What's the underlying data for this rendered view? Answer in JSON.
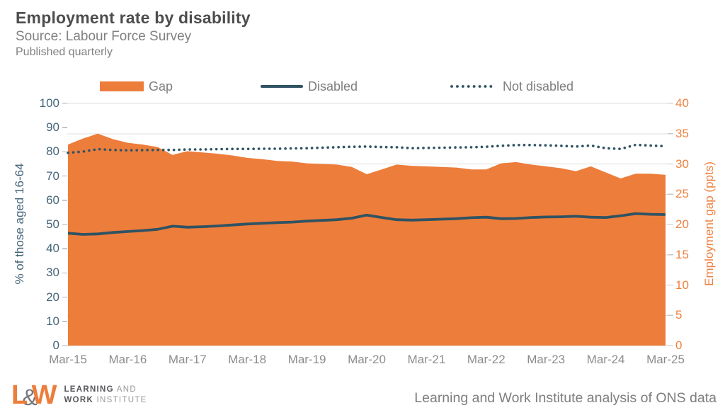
{
  "header": {
    "title": "Employment rate by disability",
    "source": "Source: Labour Force Survey",
    "frequency": "Published quarterly"
  },
  "colors": {
    "orange": "#ED7D3B",
    "slate": "#2F5363",
    "grid": "#DCDCDC",
    "left_label": "#45667A",
    "right_label": "#EE8243",
    "x_label": "#8C8C8C",
    "tick_left": "#B3B3B3",
    "tick_right": "#C9C9C9"
  },
  "legend": [
    {
      "key": "gap",
      "label": "Gap",
      "type": "area",
      "color": "#ED7D3B",
      "x": 141
    },
    {
      "key": "disabled",
      "label": "Disabled",
      "type": "line",
      "color": "#2F5363",
      "x": 368
    },
    {
      "key": "not-disabled",
      "label": "Not disabled",
      "type": "dotted",
      "color": "#2F5363",
      "x": 635
    }
  ],
  "chart_data": {
    "type": "area",
    "title": "Employment rate by disability",
    "categories": [
      "Mar-15",
      "Jun-15",
      "Sep-15",
      "Dec-15",
      "Mar-16",
      "Jun-16",
      "Sep-16",
      "Dec-16",
      "Mar-17",
      "Jun-17",
      "Sep-17",
      "Dec-17",
      "Mar-18",
      "Jun-18",
      "Sep-18",
      "Dec-18",
      "Mar-19",
      "Jun-19",
      "Sep-19",
      "Dec-19",
      "Mar-20",
      "Jun-20",
      "Sep-20",
      "Dec-20",
      "Mar-21",
      "Jun-21",
      "Sep-21",
      "Dec-21",
      "Mar-22",
      "Jun-22",
      "Sep-22",
      "Dec-22",
      "Mar-23",
      "Jun-23",
      "Sep-23",
      "Dec-23",
      "Mar-24",
      "Jun-24",
      "Sep-24",
      "Dec-24",
      "Mar-25"
    ],
    "x_tick_labels": [
      "Mar-15",
      "Mar-16",
      "Mar-17",
      "Mar-18",
      "Mar-19",
      "Mar-20",
      "Mar-21",
      "Mar-22",
      "Mar-23",
      "Mar-24",
      "Mar-25"
    ],
    "series": [
      {
        "name": "Gap",
        "type": "area",
        "axis": "right",
        "values": [
          33.2,
          34.2,
          35.0,
          34.1,
          33.5,
          33.2,
          32.8,
          31.5,
          32.1,
          31.9,
          31.7,
          31.4,
          31.0,
          30.8,
          30.5,
          30.4,
          30.1,
          30.0,
          29.9,
          29.5,
          28.3,
          29.1,
          29.9,
          29.7,
          29.6,
          29.5,
          29.4,
          29.1,
          29.1,
          30.1,
          30.3,
          29.9,
          29.6,
          29.3,
          28.8,
          29.6,
          28.6,
          27.6,
          28.4,
          28.4,
          28.2
        ]
      },
      {
        "name": "Disabled",
        "type": "line",
        "axis": "left",
        "values": [
          46.4,
          45.9,
          46.1,
          46.7,
          47.1,
          47.5,
          48.0,
          49.3,
          48.9,
          49.1,
          49.4,
          49.8,
          50.2,
          50.5,
          50.8,
          51.0,
          51.4,
          51.7,
          52.0,
          52.6,
          53.9,
          52.9,
          52.0,
          51.8,
          52.0,
          52.2,
          52.4,
          52.8,
          53.0,
          52.4,
          52.5,
          52.9,
          53.1,
          53.2,
          53.4,
          53.0,
          52.9,
          53.6,
          54.5,
          54.2,
          54.1
        ]
      },
      {
        "name": "Not disabled",
        "type": "dotted-line",
        "axis": "left",
        "values": [
          79.6,
          80.1,
          81.1,
          80.8,
          80.6,
          80.7,
          80.8,
          80.8,
          81.0,
          81.0,
          81.1,
          81.2,
          81.2,
          81.3,
          81.3,
          81.4,
          81.5,
          81.7,
          81.9,
          82.1,
          82.2,
          82.0,
          81.9,
          81.5,
          81.6,
          81.7,
          81.8,
          81.9,
          82.1,
          82.5,
          82.8,
          82.8,
          82.7,
          82.5,
          82.2,
          82.6,
          81.5,
          81.2,
          82.9,
          82.6,
          82.3
        ]
      }
    ],
    "left_axis": {
      "label": "% of those aged 16-64",
      "min": 0,
      "max": 100,
      "step": 10,
      "ticks": [
        0,
        10,
        20,
        30,
        40,
        50,
        60,
        70,
        80,
        90,
        100
      ]
    },
    "right_axis": {
      "label": "Employment gap (ppts)",
      "min": 0,
      "max": 40,
      "step": 5,
      "ticks": [
        0,
        5,
        10,
        15,
        20,
        25,
        30,
        35,
        40
      ]
    },
    "grid": "horizontal-only",
    "legend_position": "top"
  },
  "footer": {
    "logo": {
      "l": "L",
      "amp": "&",
      "w": "W",
      "line1_bold": "LEARNING",
      "line1_light": " AND",
      "line2_bold": "WORK",
      "line2_light": " INSTITUTE"
    },
    "attribution": "Learning and Work Institute analysis of ONS data"
  }
}
